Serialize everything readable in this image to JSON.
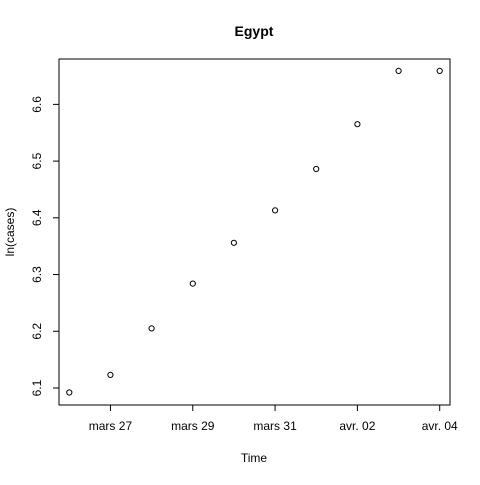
{
  "chart_data": {
    "type": "scatter",
    "title": "Egypt",
    "xlabel": "Time",
    "ylabel": "ln(cases)",
    "x": [
      "2020-03-26",
      "2020-03-27",
      "2020-03-28",
      "2020-03-29",
      "2020-03-30",
      "2020-03-31",
      "2020-04-01",
      "2020-04-02",
      "2020-04-03",
      "2020-04-04"
    ],
    "y": [
      6.092,
      6.123,
      6.205,
      6.284,
      6.356,
      6.413,
      6.486,
      6.565,
      6.659,
      6.659
    ],
    "xlim": [
      "2020-03-25 18:00",
      "2020-04-04 06:00"
    ],
    "ylim": [
      6.07,
      6.68
    ],
    "x_ticks": [
      {
        "date": "2020-03-27",
        "label": "mars 27"
      },
      {
        "date": "2020-03-29",
        "label": "mars 29"
      },
      {
        "date": "2020-03-31",
        "label": "mars 31"
      },
      {
        "date": "2020-04-02",
        "label": "avr. 02"
      },
      {
        "date": "2020-04-04",
        "label": "avr. 04"
      }
    ],
    "y_ticks": [
      6.1,
      6.2,
      6.3,
      6.4,
      6.5,
      6.6
    ],
    "grid": false,
    "legend": "none",
    "point_style": "open circle",
    "color": "#000000"
  }
}
